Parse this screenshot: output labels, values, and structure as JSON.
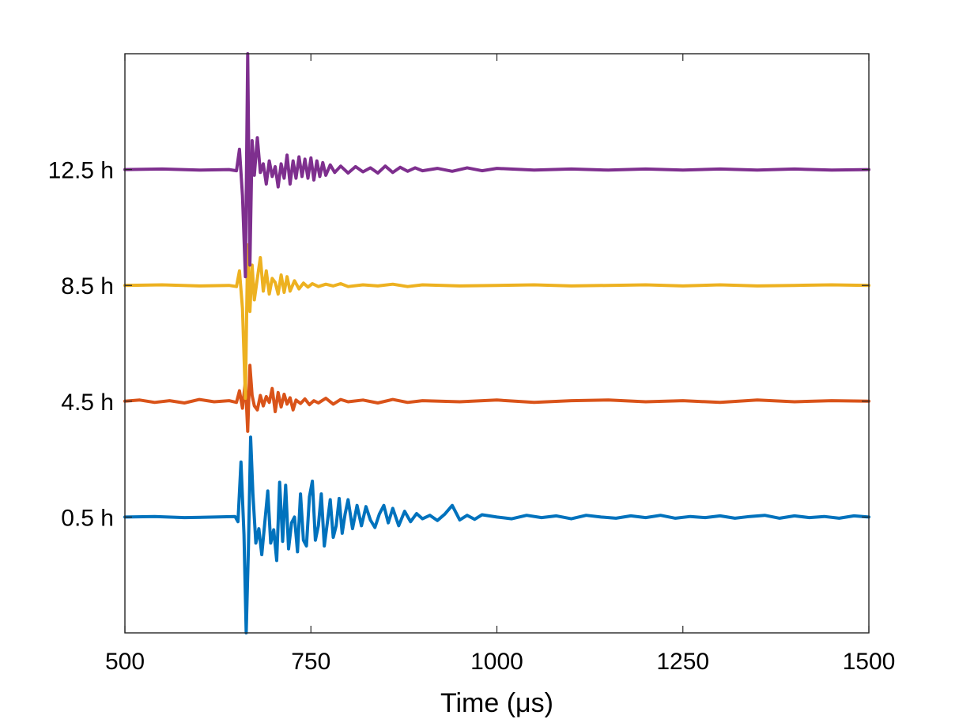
{
  "chart_data": {
    "type": "line",
    "title": "",
    "xlabel": "Time (μs)",
    "ylabel": "",
    "xlim": [
      500,
      1500
    ],
    "ylim": [
      -1,
      9
    ],
    "xticks": [
      500,
      750,
      1000,
      1250,
      1500
    ],
    "xtick_labels": [
      "500",
      "750",
      "1000",
      "1250",
      "1500"
    ],
    "yticks": [
      1,
      3,
      5,
      7
    ],
    "ytick_labels": [
      "0.5 h",
      "4.5 h",
      "8.5 h",
      "12.5 h"
    ],
    "grid": false,
    "legend": "none",
    "series": [
      {
        "color": "#0072BD",
        "offset": 1,
        "x": [
          500,
          540,
          580,
          620,
          648,
          652,
          656,
          660,
          663,
          666,
          669,
          672,
          676,
          680,
          684,
          688,
          692,
          696,
          700,
          704,
          708,
          712,
          716,
          720,
          724,
          728,
          732,
          736,
          740,
          744,
          748,
          752,
          756,
          760,
          764,
          768,
          772,
          776,
          780,
          784,
          788,
          792,
          796,
          800,
          806,
          812,
          818,
          824,
          830,
          836,
          842,
          848,
          854,
          860,
          868,
          876,
          884,
          892,
          900,
          910,
          920,
          930,
          940,
          950,
          960,
          970,
          980,
          1000,
          1020,
          1040,
          1060,
          1080,
          1100,
          1120,
          1140,
          1160,
          1180,
          1200,
          1220,
          1240,
          1260,
          1280,
          1300,
          1320,
          1340,
          1360,
          1380,
          1400,
          1420,
          1440,
          1460,
          1480,
          1500
        ],
        "y": [
          1.0,
          1.01,
          0.99,
          1.0,
          1.01,
          0.92,
          1.95,
          0.7,
          -1.0,
          0.45,
          2.38,
          1.4,
          0.55,
          0.8,
          0.35,
          0.9,
          1.45,
          0.55,
          0.78,
          0.25,
          1.6,
          0.58,
          1.55,
          0.45,
          0.9,
          1.0,
          0.4,
          1.4,
          0.6,
          0.5,
          1.35,
          1.62,
          0.6,
          0.85,
          1.4,
          0.5,
          0.9,
          1.3,
          0.65,
          0.85,
          1.32,
          0.72,
          1.05,
          1.3,
          0.8,
          1.2,
          0.85,
          1.18,
          0.95,
          0.82,
          1.05,
          1.2,
          0.9,
          1.15,
          0.85,
          1.1,
          0.92,
          1.06,
          0.97,
          1.03,
          0.94,
          1.05,
          1.2,
          0.95,
          1.03,
          0.96,
          1.04,
          1.0,
          0.97,
          1.03,
          0.99,
          1.02,
          0.97,
          1.03,
          1.0,
          0.98,
          1.02,
          0.99,
          1.03,
          0.98,
          1.01,
          0.99,
          1.02,
          0.98,
          1.01,
          1.03,
          0.98,
          1.02,
          0.99,
          1.01,
          0.98,
          1.02,
          1.0
        ]
      },
      {
        "color": "#D95319",
        "offset": 3,
        "x": [
          500,
          520,
          540,
          560,
          580,
          600,
          620,
          640,
          650,
          654,
          658,
          662,
          665,
          668,
          671,
          674,
          678,
          682,
          686,
          690,
          694,
          698,
          702,
          706,
          710,
          714,
          718,
          722,
          726,
          730,
          736,
          742,
          748,
          754,
          760,
          770,
          780,
          790,
          800,
          820,
          840,
          860,
          880,
          900,
          950,
          1000,
          1050,
          1100,
          1150,
          1200,
          1250,
          1300,
          1350,
          1400,
          1450,
          1500
        ],
        "y": [
          3.0,
          3.02,
          2.98,
          3.01,
          2.97,
          3.03,
          2.99,
          3.01,
          2.98,
          3.18,
          2.88,
          3.35,
          2.48,
          3.62,
          3.1,
          2.92,
          2.85,
          3.1,
          2.92,
          3.08,
          2.98,
          3.22,
          2.82,
          3.15,
          2.9,
          3.12,
          2.95,
          3.06,
          2.85,
          3.02,
          2.96,
          3.04,
          2.94,
          3.01,
          2.97,
          3.05,
          2.95,
          3.03,
          2.99,
          3.02,
          2.97,
          3.03,
          2.98,
          3.01,
          2.99,
          3.02,
          2.98,
          3.01,
          3.02,
          2.99,
          3.01,
          2.98,
          3.02,
          2.99,
          3.01,
          3.0
        ]
      },
      {
        "color": "#EDB120",
        "offset": 5,
        "x": [
          500,
          550,
          600,
          640,
          650,
          654,
          658,
          662,
          665,
          668,
          671,
          674,
          678,
          682,
          686,
          690,
          694,
          698,
          702,
          706,
          710,
          714,
          718,
          722,
          728,
          734,
          740,
          746,
          752,
          760,
          770,
          780,
          790,
          800,
          820,
          840,
          860,
          880,
          900,
          950,
          1000,
          1050,
          1100,
          1150,
          1200,
          1250,
          1300,
          1350,
          1400,
          1450,
          1500
        ],
        "y": [
          5.0,
          5.01,
          4.99,
          5.0,
          4.98,
          5.25,
          4.6,
          3.05,
          5.7,
          4.55,
          5.35,
          4.75,
          5.12,
          5.48,
          4.9,
          5.25,
          4.85,
          5.12,
          5.05,
          4.85,
          5.18,
          4.88,
          5.15,
          4.9,
          5.08,
          4.94,
          5.04,
          4.97,
          5.03,
          4.98,
          5.02,
          4.99,
          5.03,
          4.98,
          5.01,
          4.99,
          5.02,
          4.98,
          5.01,
          4.99,
          5.0,
          5.01,
          4.99,
          5.0,
          5.01,
          4.99,
          5.01,
          4.99,
          5.0,
          5.01,
          5.0
        ]
      },
      {
        "color": "#7E2F8E",
        "offset": 7,
        "x": [
          500,
          550,
          600,
          640,
          650,
          654,
          658,
          662,
          665,
          668,
          671,
          674,
          678,
          682,
          686,
          690,
          694,
          698,
          702,
          706,
          710,
          714,
          718,
          722,
          726,
          730,
          734,
          738,
          742,
          746,
          750,
          754,
          758,
          762,
          766,
          770,
          776,
          782,
          790,
          800,
          810,
          820,
          830,
          840,
          850,
          860,
          870,
          880,
          890,
          900,
          920,
          940,
          960,
          980,
          1000,
          1050,
          1100,
          1150,
          1200,
          1250,
          1300,
          1350,
          1400,
          1450,
          1500
        ],
        "y": [
          7.0,
          7.01,
          6.99,
          7.0,
          6.98,
          7.35,
          6.55,
          5.15,
          9.0,
          5.35,
          7.5,
          6.9,
          7.55,
          6.95,
          7.1,
          6.75,
          7.15,
          6.88,
          7.05,
          6.7,
          7.1,
          6.85,
          7.25,
          6.75,
          7.15,
          6.85,
          7.22,
          6.88,
          7.18,
          6.85,
          7.2,
          6.82,
          7.15,
          6.88,
          7.12,
          6.9,
          7.08,
          6.95,
          7.06,
          6.94,
          7.05,
          6.96,
          7.03,
          6.94,
          7.06,
          6.95,
          7.04,
          6.97,
          7.03,
          6.98,
          7.02,
          6.97,
          7.03,
          6.98,
          7.02,
          6.99,
          7.01,
          6.99,
          7.01,
          6.99,
          7.01,
          6.99,
          7.01,
          6.99,
          7.0
        ]
      }
    ]
  }
}
